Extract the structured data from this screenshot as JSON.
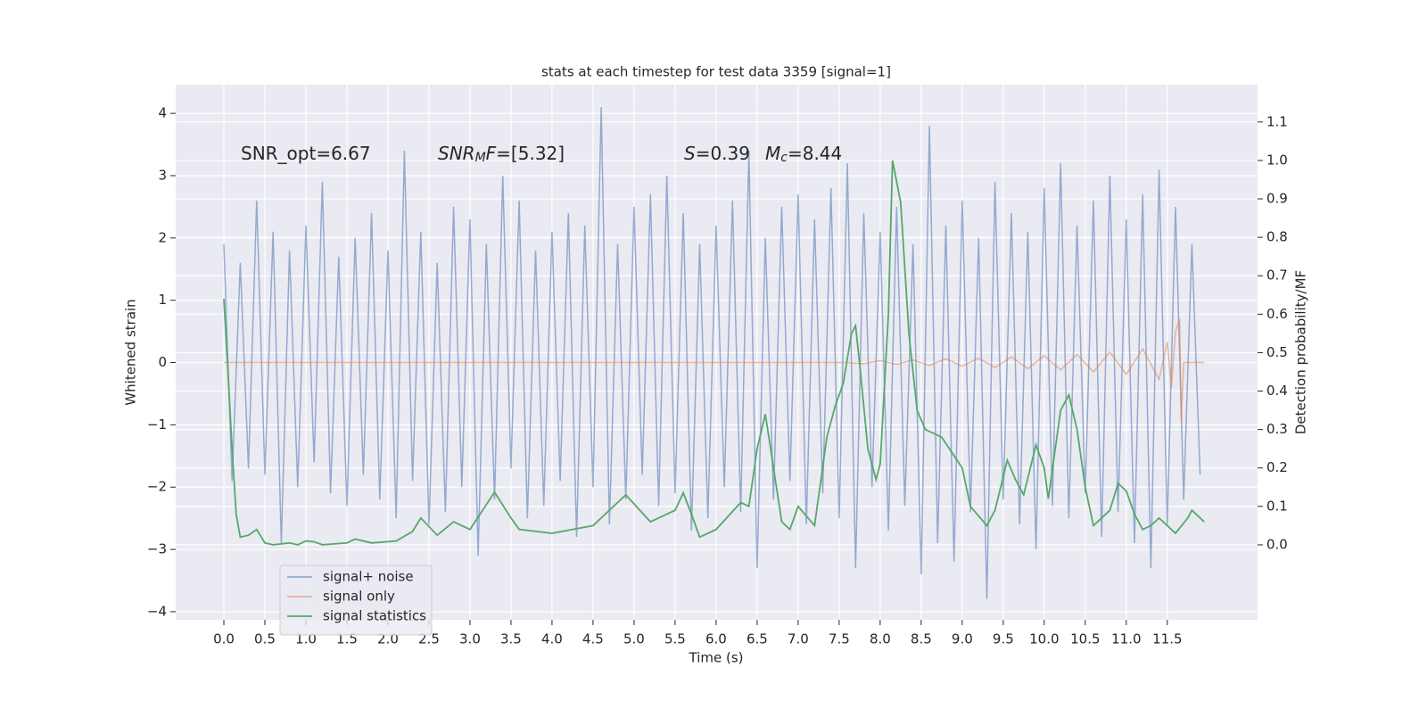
{
  "chart_data": {
    "type": "line",
    "title": "stats at each timestep for test data 3359 [signal=1]",
    "xlabel": "Time (s)",
    "ylabel": "Whitened strain",
    "y2label": "Detection probability/MF",
    "xlim": [
      -0.587,
      12.6
    ],
    "ylim": [
      -4.13,
      4.46
    ],
    "y2lim": [
      -0.195,
      1.197
    ],
    "xticks": [
      {
        "value": 0,
        "label": "0.0"
      },
      0.5,
      {
        "value": 1,
        "label": "1.0"
      },
      1.5,
      {
        "value": 2,
        "label": "2.0"
      },
      2.5,
      {
        "value": 3,
        "label": "3.0"
      },
      3.5,
      {
        "value": 4,
        "label": "4.0"
      },
      4.5,
      {
        "value": 5,
        "label": "5.0"
      },
      5.5,
      {
        "value": 6,
        "label": "6.0"
      },
      6.5,
      {
        "value": 7,
        "label": "7.0"
      },
      7.5,
      {
        "value": 8,
        "label": "8.0"
      },
      8.5,
      {
        "value": 9,
        "label": "9.0"
      },
      9.5,
      {
        "value": 10,
        "label": "10.0"
      },
      10.5,
      {
        "value": 11,
        "label": "11.0"
      },
      11.5
    ],
    "yticks": [
      {
        "value": -4,
        "label": "−4"
      },
      {
        "value": -3,
        "label": "−3"
      },
      {
        "value": -2,
        "label": "−2"
      },
      {
        "value": -1,
        "label": "−1"
      },
      0,
      1,
      2,
      3,
      4
    ],
    "y2ticks": [
      {
        "value": 0,
        "label": "0.0"
      },
      0.1,
      0.2,
      0.3,
      0.4,
      0.5,
      0.6,
      0.7,
      0.8,
      0.9,
      {
        "value": 1,
        "label": "1.0"
      },
      1.1
    ],
    "grid": true,
    "legend": "lower left",
    "annotations": [
      [
        {
          "text": "SNR_opt=6.67"
        }
      ],
      [
        {
          "text": "SNR",
          "style": "italic"
        },
        {
          "text": "M",
          "style": "sub"
        },
        {
          "text": "F",
          "style": "italic"
        },
        {
          "text": "=[5.32]"
        }
      ],
      [
        {
          "text": "S",
          "style": "italic"
        },
        {
          "text": "=0.39"
        }
      ],
      [
        {
          "text": "M",
          "style": "italic"
        },
        {
          "text": "c",
          "style": "sub"
        },
        {
          "text": "=8.44"
        }
      ]
    ],
    "series": [
      {
        "name": "signal+ noise",
        "color": "#4c72b0",
        "x": [
          0.0,
          0.1,
          0.2,
          0.3,
          0.4,
          0.5,
          0.6,
          0.7,
          0.8,
          0.9,
          1.0,
          1.1,
          1.2,
          1.3,
          1.4,
          1.5,
          1.6,
          1.7,
          1.8,
          1.9,
          2.0,
          2.1,
          2.2,
          2.3,
          2.4,
          2.5,
          2.6,
          2.7,
          2.8,
          2.9,
          3.0,
          3.1,
          3.2,
          3.3,
          3.4,
          3.5,
          3.6,
          3.7,
          3.8,
          3.9,
          4.0,
          4.1,
          4.2,
          4.3,
          4.4,
          4.5,
          4.6,
          4.7,
          4.8,
          4.9,
          5.0,
          5.1,
          5.2,
          5.3,
          5.4,
          5.5,
          5.6,
          5.7,
          5.8,
          5.9,
          6.0,
          6.1,
          6.2,
          6.3,
          6.4,
          6.5,
          6.6,
          6.7,
          6.8,
          6.9,
          7.0,
          7.1,
          7.2,
          7.3,
          7.4,
          7.5,
          7.6,
          7.7,
          7.8,
          7.9,
          8.0,
          8.1,
          8.2,
          8.3,
          8.4,
          8.5,
          8.6,
          8.7,
          8.8,
          8.9,
          9.0,
          9.1,
          9.2,
          9.3,
          9.4,
          9.5,
          9.6,
          9.7,
          9.8,
          9.9,
          10.0,
          10.1,
          10.2,
          10.3,
          10.4,
          10.5,
          10.6,
          10.7,
          10.8,
          10.9,
          11.0,
          11.1,
          11.2,
          11.3,
          11.4,
          11.5,
          11.6,
          11.7,
          11.8,
          11.9
        ],
        "values": [
          1.9,
          -1.9,
          1.6,
          -1.7,
          2.6,
          -1.8,
          2.1,
          -2.9,
          1.8,
          -2.0,
          2.2,
          -1.6,
          2.9,
          -2.1,
          1.7,
          -2.3,
          2.0,
          -1.8,
          2.4,
          -2.2,
          1.8,
          -2.5,
          3.4,
          -1.9,
          2.1,
          -2.6,
          1.6,
          -2.4,
          2.5,
          -2.0,
          2.3,
          -3.1,
          1.9,
          -2.2,
          3.0,
          -1.7,
          2.6,
          -2.5,
          1.8,
          -2.3,
          2.1,
          -1.9,
          2.4,
          -2.8,
          2.2,
          -2.0,
          4.1,
          -2.6,
          1.9,
          -2.2,
          2.5,
          -1.8,
          2.7,
          -2.3,
          3.0,
          -2.1,
          2.4,
          -2.7,
          1.9,
          -2.5,
          2.2,
          -2.0,
          2.6,
          -2.4,
          3.4,
          -3.3,
          2.0,
          -2.2,
          2.5,
          -1.9,
          2.7,
          -2.6,
          2.3,
          -2.1,
          2.8,
          -2.5,
          3.2,
          -3.3,
          2.4,
          -2.0,
          2.1,
          -2.7,
          2.5,
          -2.3,
          1.9,
          -3.4,
          3.8,
          -2.9,
          2.2,
          -3.2,
          2.6,
          -2.4,
          2.0,
          -3.8,
          2.9,
          -2.2,
          2.4,
          -2.6,
          2.1,
          -3.0,
          2.8,
          -2.3,
          3.2,
          -2.5,
          2.2,
          -2.1,
          2.6,
          -2.8,
          3.0,
          -2.4,
          2.3,
          -2.9,
          2.7,
          -3.3,
          3.1,
          -2.6,
          2.5,
          -2.2,
          1.9,
          -1.8
        ]
      },
      {
        "name": "signal only",
        "color": "#dd8452",
        "x": [
          0.0,
          7.6,
          7.8,
          8.0,
          8.2,
          8.4,
          8.6,
          8.8,
          9.0,
          9.2,
          9.4,
          9.6,
          9.8,
          10.0,
          10.2,
          10.4,
          10.6,
          10.8,
          11.0,
          11.2,
          11.4,
          11.5,
          11.55,
          11.6,
          11.65,
          11.67,
          11.7,
          11.95
        ],
        "values": [
          0,
          0,
          -0.02,
          0.03,
          -0.03,
          0.04,
          -0.05,
          0.06,
          -0.06,
          0.07,
          -0.08,
          0.09,
          -0.1,
          0.11,
          -0.12,
          0.13,
          -0.15,
          0.17,
          -0.19,
          0.22,
          -0.27,
          0.33,
          -0.4,
          0.5,
          0.7,
          -0.95,
          0,
          0
        ]
      },
      {
        "name": "signal statistics",
        "color": "#55a868",
        "axis": "y2",
        "x": [
          0.0,
          0.05,
          0.1,
          0.15,
          0.2,
          0.3,
          0.4,
          0.5,
          0.6,
          0.8,
          0.9,
          1.0,
          1.1,
          1.2,
          1.5,
          1.6,
          1.8,
          2.1,
          2.3,
          2.4,
          2.6,
          2.8,
          3.0,
          3.3,
          3.5,
          3.6,
          4.0,
          4.5,
          4.9,
          5.2,
          5.5,
          5.6,
          5.7,
          5.8,
          6.0,
          6.3,
          6.4,
          6.5,
          6.6,
          6.7,
          6.8,
          6.9,
          7.0,
          7.2,
          7.35,
          7.45,
          7.55,
          7.65,
          7.7,
          7.75,
          7.85,
          7.95,
          8.0,
          8.1,
          8.15,
          8.25,
          8.35,
          8.45,
          8.55,
          8.75,
          9.0,
          9.1,
          9.3,
          9.4,
          9.55,
          9.65,
          9.75,
          9.9,
          10.0,
          10.05,
          10.2,
          10.3,
          10.4,
          10.5,
          10.6,
          10.8,
          10.9,
          11.0,
          11.1,
          11.2,
          11.3,
          11.4,
          11.6,
          11.75,
          11.8,
          11.95
        ],
        "values": [
          0.64,
          0.45,
          0.25,
          0.08,
          0.02,
          0.025,
          0.04,
          0.005,
          0.0,
          0.005,
          0.0,
          0.01,
          0.008,
          0.0,
          0.005,
          0.015,
          0.005,
          0.01,
          0.035,
          0.07,
          0.025,
          0.06,
          0.04,
          0.137,
          0.07,
          0.04,
          0.03,
          0.05,
          0.13,
          0.06,
          0.09,
          0.135,
          0.08,
          0.02,
          0.04,
          0.11,
          0.1,
          0.25,
          0.34,
          0.2,
          0.06,
          0.04,
          0.1,
          0.05,
          0.28,
          0.36,
          0.42,
          0.55,
          0.57,
          0.47,
          0.25,
          0.17,
          0.21,
          0.6,
          1.0,
          0.89,
          0.55,
          0.35,
          0.3,
          0.28,
          0.2,
          0.1,
          0.05,
          0.09,
          0.22,
          0.17,
          0.13,
          0.26,
          0.2,
          0.12,
          0.35,
          0.39,
          0.3,
          0.15,
          0.05,
          0.09,
          0.16,
          0.14,
          0.08,
          0.04,
          0.05,
          0.07,
          0.03,
          0.07,
          0.09,
          0.06
        ]
      }
    ]
  }
}
